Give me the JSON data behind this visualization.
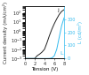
{
  "title": "",
  "xlabel": "Tension (V)",
  "ylabel_left": "Current density (mA/cm²)",
  "ylabel_right": "L (cd/m²)",
  "x_values": [
    0,
    0.5,
    1.0,
    1.5,
    2.0,
    2.5,
    3.0,
    3.5,
    4.0,
    4.5,
    5.0,
    5.5,
    6.0,
    6.5,
    7.0,
    7.5,
    8.0
  ],
  "j_values": [
    0.001,
    0.001,
    0.001,
    0.001,
    0.001,
    0.002,
    0.003,
    0.005,
    0.01,
    0.05,
    0.3,
    1.5,
    6,
    20,
    60,
    130,
    200
  ],
  "L_values": [
    0,
    0,
    0,
    0,
    0,
    0,
    0,
    0,
    0,
    0.0,
    0.5,
    4,
    20,
    70,
    160,
    250,
    310
  ],
  "j_color": "#222222",
  "L_color": "#33bbee",
  "x_min": 0,
  "x_max": 8,
  "j_min": 0.001,
  "j_max": 500,
  "L_min": 0,
  "L_max": 400,
  "x_ticks": [
    0,
    2,
    4,
    6,
    8
  ],
  "j_ticks": [
    0.001,
    0.01,
    0.1,
    1,
    10,
    100
  ],
  "L_ticks": [
    0,
    100,
    200,
    300
  ],
  "annotation_j": "j",
  "annotation_L": "L",
  "fontsize": 4.0,
  "linewidth": 0.7,
  "figsize": [
    1.0,
    0.85
  ],
  "dpi": 100,
  "bg_color": "#ffffff"
}
